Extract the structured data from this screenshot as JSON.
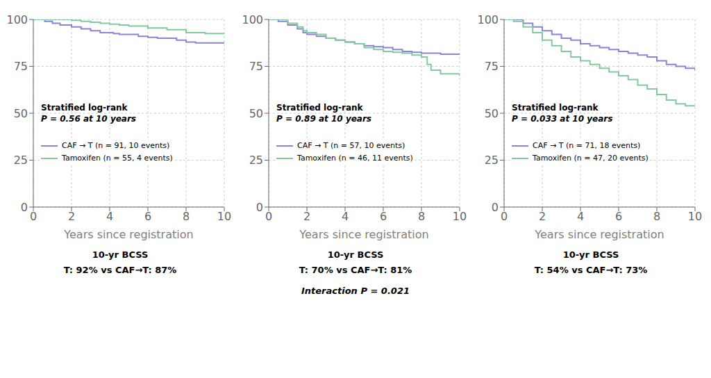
{
  "chart_data": [
    {
      "type": "line",
      "xlabel": "Years since registration",
      "xlim": [
        0,
        10
      ],
      "ylim": [
        0,
        100
      ],
      "xticks": [
        0,
        2,
        4,
        6,
        8,
        10
      ],
      "yticks": [
        0,
        25,
        50,
        75,
        100
      ],
      "legend": "lower left",
      "annotations": [
        "Stratified log-rank",
        "P = 0.56 at 10 years",
        "10-yr BCSS",
        "T: 92% vs CAF→T: 87%"
      ],
      "series": [
        {
          "name": "CAF → T (n = 91, 10 events)",
          "color": "#8884d8",
          "line_style": "step",
          "x": [
            0,
            0.3,
            0.6,
            1.0,
            1.4,
            2.0,
            2.5,
            3.0,
            3.5,
            4.0,
            4.2,
            4.5,
            5.5,
            6.0,
            6.5,
            7.5,
            8.0,
            8.5,
            10.0
          ],
          "values": [
            100,
            100,
            99,
            98,
            97,
            96,
            95,
            94,
            93,
            93,
            92.5,
            92,
            91,
            90.5,
            90,
            89,
            88,
            87.5,
            87.5
          ]
        },
        {
          "name": "Tamoxifen (n = 55, 4 events)",
          "color": "#82ca9d",
          "line_style": "step",
          "x": [
            0,
            0.3,
            0.8,
            1.5,
            2.0,
            2.5,
            3.0,
            3.5,
            4.0,
            4.5,
            5.0,
            6.0,
            7.0,
            8.0,
            9.0,
            10.0
          ],
          "values": [
            100,
            100,
            100,
            100,
            99.5,
            99,
            98.5,
            98,
            97.5,
            97,
            96.5,
            95.5,
            94.5,
            93,
            92.5,
            92.5
          ]
        }
      ]
    },
    {
      "type": "line",
      "xlabel": "Years since registration",
      "xlim": [
        0,
        10
      ],
      "ylim": [
        0,
        100
      ],
      "xticks": [
        0,
        2,
        4,
        6,
        8,
        10
      ],
      "yticks": [
        0,
        25,
        50,
        75,
        100
      ],
      "legend": "lower left",
      "annotations": [
        "Stratified log-rank",
        "P = 0.89 at 10 years",
        "10-yr BCSS",
        "T: 70% vs CAF→T: 81%",
        "Interaction P = 0.021"
      ],
      "series": [
        {
          "name": "CAF → T (n = 57, 10 events)",
          "color": "#8884d8",
          "line_style": "step",
          "x": [
            0,
            0.5,
            1.0,
            1.5,
            1.8,
            2.0,
            2.5,
            3.0,
            3.5,
            4.0,
            4.5,
            5.0,
            5.5,
            6.0,
            6.5,
            7.0,
            7.5,
            8.0,
            9.0,
            10.0
          ],
          "values": [
            100,
            99,
            97,
            95,
            93,
            92,
            91,
            90,
            89,
            88,
            87,
            86,
            85.5,
            85,
            84,
            83,
            82.5,
            82,
            81.5,
            81.5
          ]
        },
        {
          "name": "Tamoxifen (n = 46, 11 events)",
          "color": "#82ca9d",
          "line_style": "step",
          "x": [
            0,
            0.5,
            1.0,
            1.5,
            1.8,
            2.0,
            2.5,
            3.0,
            3.5,
            4.0,
            4.5,
            5.0,
            5.5,
            6.0,
            6.5,
            7.0,
            7.5,
            8.0,
            8.3,
            8.5,
            9.0,
            10.0
          ],
          "values": [
            100,
            100,
            98,
            96,
            94,
            93,
            92,
            90,
            89,
            88,
            87,
            85,
            84,
            83,
            82.5,
            82,
            81,
            80,
            76,
            73,
            71,
            70
          ]
        }
      ]
    },
    {
      "type": "line",
      "xlabel": "Years since registration",
      "xlim": [
        0,
        10
      ],
      "ylim": [
        0,
        100
      ],
      "xticks": [
        0,
        2,
        4,
        6,
        8,
        10
      ],
      "yticks": [
        0,
        25,
        50,
        75,
        100
      ],
      "legend": "lower left",
      "annotations": [
        "Stratified log-rank",
        "P = 0.033 at 10 years",
        "10-yr BCSS",
        "T: 54% vs CAF→T: 73%"
      ],
      "series": [
        {
          "name": "CAF → T (n = 71, 18 events)",
          "color": "#8884d8",
          "line_style": "step",
          "x": [
            0,
            0.5,
            1.0,
            1.5,
            2.0,
            2.5,
            3.0,
            3.5,
            4.0,
            4.5,
            5.0,
            5.5,
            6.0,
            6.5,
            7.0,
            7.5,
            8.0,
            8.5,
            9.0,
            9.5,
            10.0
          ],
          "values": [
            100,
            100,
            98,
            96,
            94,
            92,
            90,
            89,
            87,
            86,
            85,
            84,
            83,
            82,
            81,
            80,
            78,
            76,
            75,
            74,
            73
          ]
        },
        {
          "name": "Tamoxifen (n = 47, 20 events)",
          "color": "#82ca9d",
          "line_style": "step",
          "x": [
            0,
            0.5,
            1.0,
            1.5,
            2.0,
            2.5,
            3.0,
            3.5,
            4.0,
            4.5,
            5.0,
            5.5,
            6.0,
            6.5,
            7.0,
            7.5,
            8.0,
            8.5,
            9.0,
            9.5,
            10.0
          ],
          "values": [
            100,
            99,
            96,
            93,
            89,
            86,
            83,
            80,
            78,
            76,
            74,
            72,
            70,
            68,
            65,
            63,
            60,
            57,
            55,
            54,
            54
          ]
        }
      ]
    }
  ]
}
